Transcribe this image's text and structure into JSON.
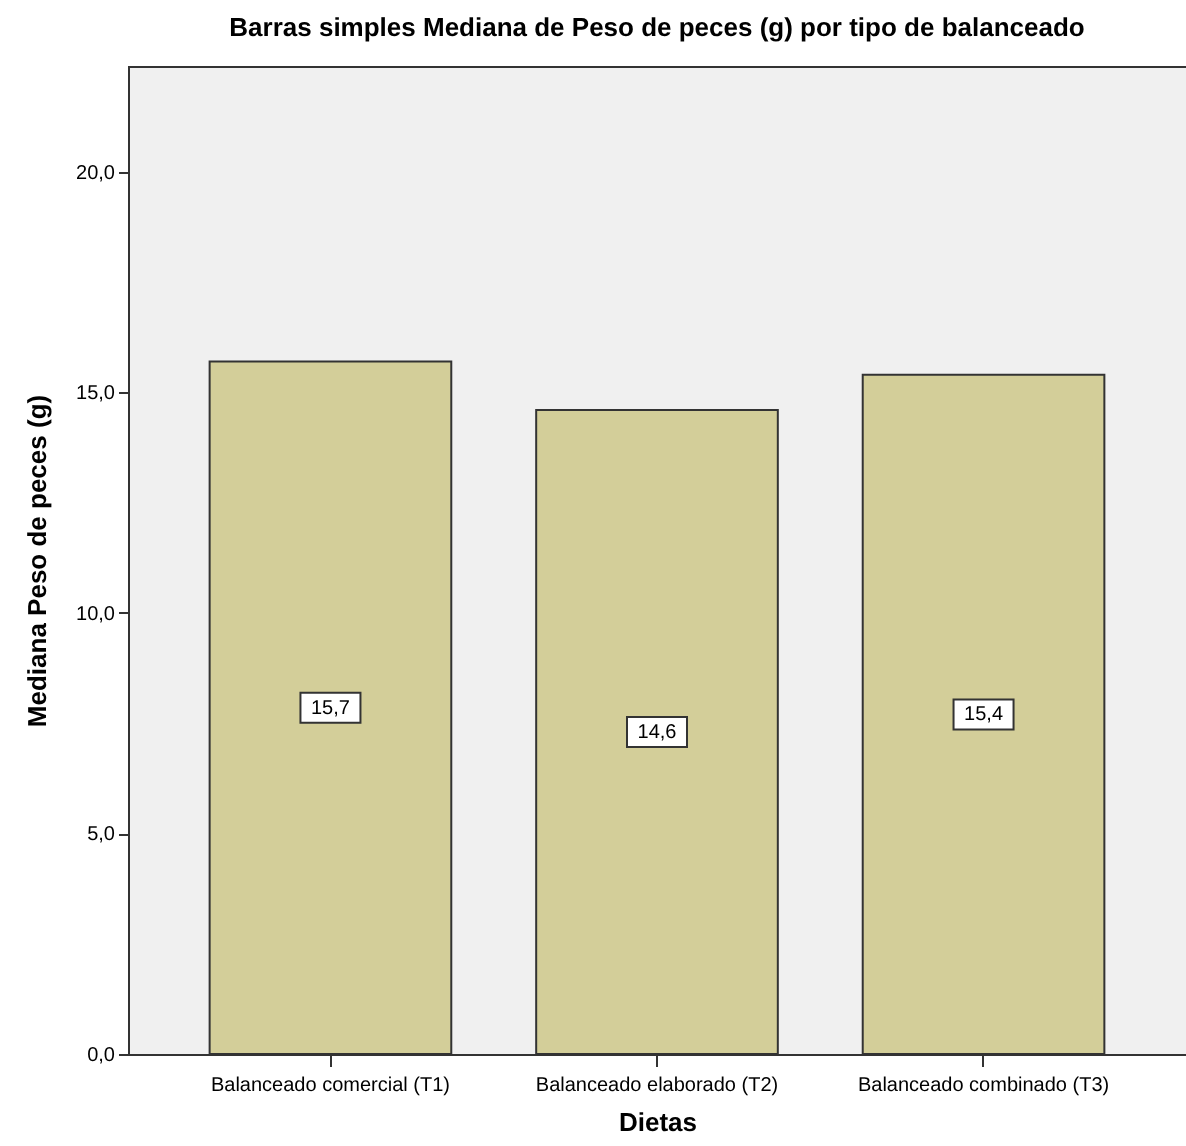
{
  "chart_data": {
    "type": "bar",
    "title": "Barras simples Mediana de Peso de peces (g) por tipo de balanceado",
    "xlabel": "Dietas",
    "ylabel": "Mediana Peso de peces (g)",
    "categories": [
      "Balanceado comercial (T1)",
      "Balanceado elaborado (T2)",
      "Balanceado combinado (T3)"
    ],
    "values": [
      15.7,
      14.6,
      15.4
    ],
    "value_labels": [
      "15,7",
      "14,6",
      "15,4"
    ],
    "color": "#d3ce99",
    "ylim": [
      0,
      22.4
    ],
    "yticks": [
      {
        "value": 0,
        "label": "0,0"
      },
      {
        "value": 5,
        "label": "5,0"
      },
      {
        "value": 10,
        "label": "10,0"
      },
      {
        "value": 15,
        "label": "15,0"
      },
      {
        "value": 20,
        "label": "20,0"
      }
    ],
    "grid": false
  }
}
